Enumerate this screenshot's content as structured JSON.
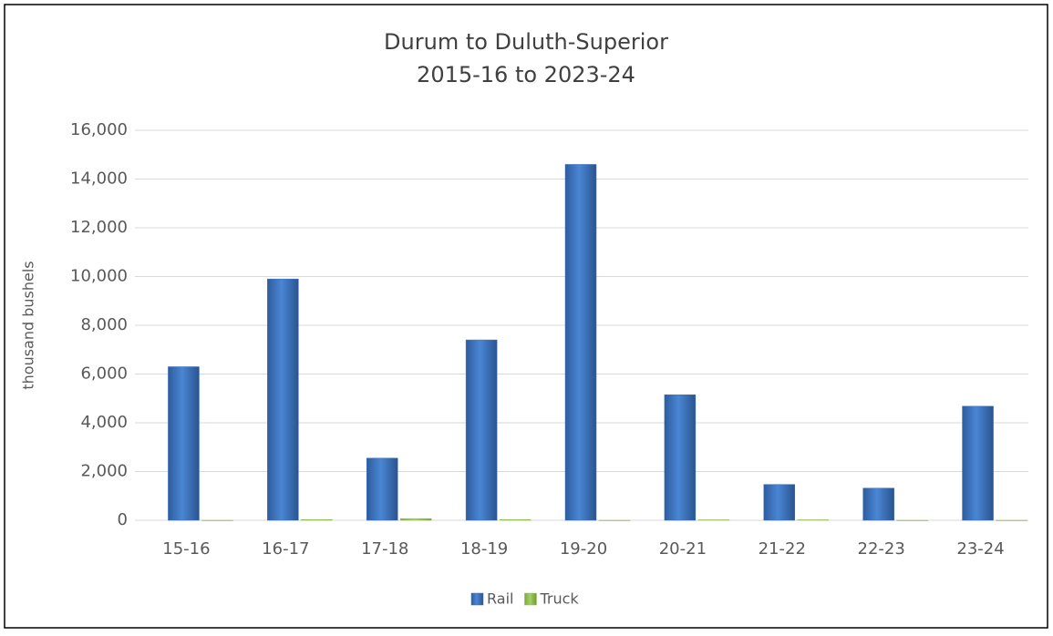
{
  "chart_data": {
    "type": "bar",
    "title": "Durum to Duluth-Superior",
    "subtitle": "2015-16 to 2023-24",
    "y_label": "thousand bushels",
    "categories": [
      "15-16",
      "16-17",
      "17-18",
      "18-19",
      "19-20",
      "20-21",
      "21-22",
      "22-23",
      "23-24"
    ],
    "series": [
      {
        "name": "Rail",
        "color": "#3a6fba",
        "values": [
          6300,
          9900,
          2550,
          7400,
          14600,
          5150,
          1470,
          1320,
          4680
        ]
      },
      {
        "name": "Truck",
        "color": "#92c050",
        "values": [
          0,
          30,
          70,
          30,
          0,
          20,
          20,
          0,
          0
        ]
      }
    ],
    "ylim": [
      0,
      16000
    ],
    "yticks": [
      0,
      {
        "value": 2000,
        "label": "2,000"
      },
      {
        "value": 4000,
        "label": "4,000"
      },
      {
        "value": 6000,
        "label": "6,000"
      },
      {
        "value": 8000,
        "label": "8,000"
      },
      {
        "value": 10000,
        "label": "10,000"
      },
      {
        "value": 12000,
        "label": "12,000"
      },
      {
        "value": 14000,
        "label": "14,000"
      },
      {
        "value": 16000,
        "label": "16,000"
      }
    ],
    "grid": true,
    "legend": "bottom"
  }
}
